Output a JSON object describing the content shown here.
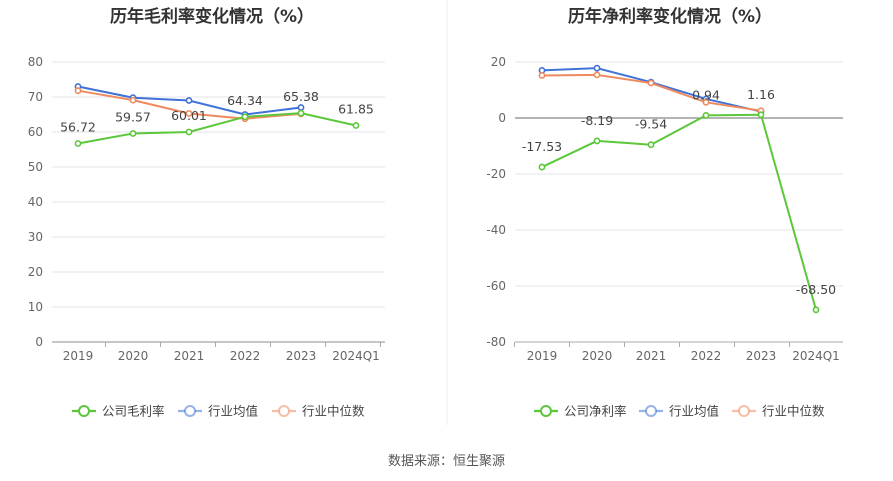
{
  "source_text": "数据来源：恒生聚源",
  "chart_data": [
    {
      "type": "line",
      "title": "历年毛利率变化情况（%）",
      "categories": [
        "2019",
        "2020",
        "2021",
        "2022",
        "2023",
        "2024Q1"
      ],
      "ylim": [
        0,
        80
      ],
      "yticks": [
        0,
        10,
        20,
        30,
        40,
        50,
        60,
        70,
        80
      ],
      "grid": true,
      "legend_position": "bottom",
      "series": [
        {
          "name": "公司毛利率",
          "color": "#5cc73a",
          "values": [
            56.72,
            59.57,
            60.01,
            64.34,
            65.38,
            61.85
          ],
          "labels": [
            "56.72",
            "59.57",
            "60.01",
            "64.34",
            "65.38",
            "61.85"
          ]
        },
        {
          "name": "行业均值",
          "color": "#3f72d8",
          "values": [
            73.0,
            69.8,
            69.0,
            65.0,
            67.0,
            null
          ],
          "labels": []
        },
        {
          "name": "行业中位数",
          "color": "#ef8a5e",
          "values": [
            71.8,
            69.1,
            65.3,
            63.8,
            65.2,
            null
          ],
          "labels": []
        }
      ]
    },
    {
      "type": "line",
      "title": "历年净利率变化情况（%）",
      "categories": [
        "2019",
        "2020",
        "2021",
        "2022",
        "2023",
        "2024Q1"
      ],
      "ylim": [
        -80,
        20
      ],
      "yticks": [
        -80,
        -60,
        -40,
        -20,
        0,
        20
      ],
      "grid": true,
      "legend_position": "bottom",
      "series": [
        {
          "name": "公司净利率",
          "color": "#5cc73a",
          "values": [
            -17.53,
            -8.19,
            -9.54,
            0.94,
            1.16,
            -68.5
          ],
          "labels": [
            "-17.53",
            "-8.19",
            "-9.54",
            "0.94",
            "1.16",
            "-68.50"
          ]
        },
        {
          "name": "行业均值",
          "color": "#3f72d8",
          "values": [
            17.0,
            17.8,
            12.8,
            6.8,
            2.3,
            null
          ],
          "labels": []
        },
        {
          "name": "行业中位数",
          "color": "#ef8a5e",
          "values": [
            15.2,
            15.4,
            12.5,
            5.6,
            2.6,
            null
          ],
          "labels": []
        }
      ]
    }
  ]
}
